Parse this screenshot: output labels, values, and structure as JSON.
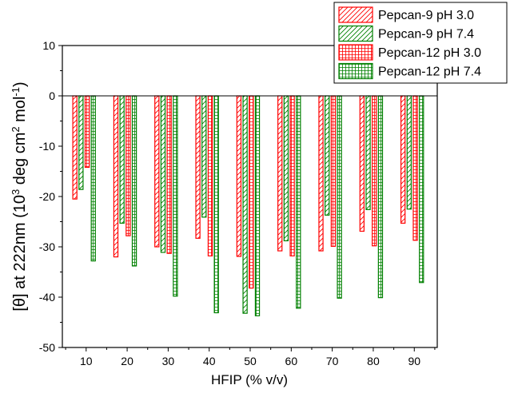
{
  "chart_data": {
    "type": "bar",
    "title": "",
    "xlabel": "HFIP (% v/v)",
    "ylabel_parts": {
      "a": "[θ] at 222nm (10",
      "b": "3",
      "c": " deg cm",
      "d": "2",
      "e": " mol",
      "f": "-1",
      "g": ")"
    },
    "categories": [
      "10",
      "20",
      "30",
      "40",
      "50",
      "60",
      "70",
      "80",
      "90"
    ],
    "x": [
      10,
      20,
      30,
      40,
      50,
      60,
      70,
      80,
      90
    ],
    "xticks": [
      "10",
      "20",
      "30",
      "40",
      "50",
      "60",
      "70",
      "80",
      "90"
    ],
    "ylim": [
      -50,
      10
    ],
    "yticks": [
      "10",
      "0",
      "-10",
      "-20",
      "-30",
      "-40",
      "-50"
    ],
    "ytick_values": [
      10,
      0,
      -10,
      -20,
      -30,
      -40,
      -50
    ],
    "grid": false,
    "legend_position": "top-right",
    "series": [
      {
        "name": "Pepcan-9 pH 3.0",
        "color": "#ff0000",
        "pattern": "diagonal-hatch",
        "values": [
          -20.5,
          -32,
          -30,
          -28.3,
          -31.9,
          -30.8,
          -30.8,
          -26.9,
          -25.3
        ]
      },
      {
        "name": "Pepcan-9 pH 7.4",
        "color": "#008000",
        "pattern": "diagonal-hatch",
        "values": [
          -18.6,
          -25.3,
          -31.1,
          -24.1,
          -43.2,
          -28.8,
          -23.7,
          -22.6,
          -22.5
        ]
      },
      {
        "name": "Pepcan-12 pH 3.0",
        "color": "#ff0000",
        "pattern": "grid-hatch",
        "values": [
          -14.2,
          -27.8,
          -31.3,
          -31.8,
          -38.2,
          -31.8,
          -29.9,
          -29.8,
          -28.7
        ]
      },
      {
        "name": "Pepcan-12 pH 7.4",
        "color": "#008000",
        "pattern": "grid-hatch",
        "values": [
          -32.8,
          -33.8,
          -39.8,
          -43.1,
          -43.7,
          -42.2,
          -40.2,
          -40.1,
          -37.1
        ]
      }
    ]
  }
}
